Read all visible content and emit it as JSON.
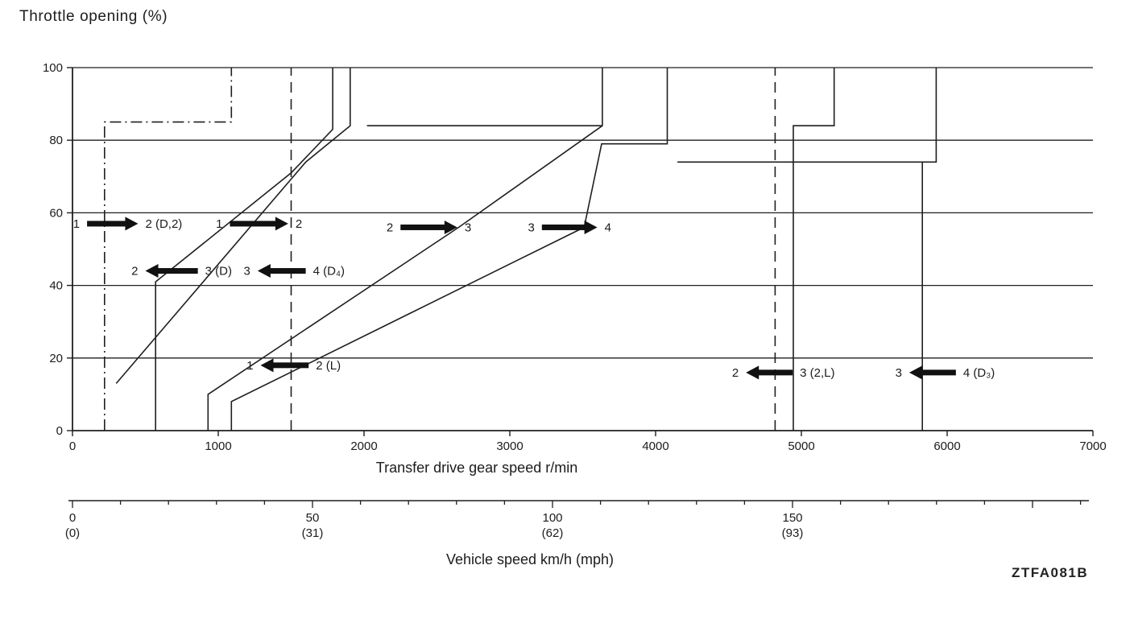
{
  "page": {
    "watermark": "ZTFA081B"
  },
  "chart_data": {
    "type": "line",
    "title": "Throttle opening (%)",
    "ylabel": "Throttle opening (%)",
    "xlabel": "Transfer drive gear speed r/min",
    "xlim": [
      0,
      7000
    ],
    "ylim": [
      0,
      100
    ],
    "x_ticks": [
      0,
      1000,
      2000,
      3000,
      4000,
      5000,
      6000,
      7000
    ],
    "y_ticks": [
      0,
      20,
      40,
      60,
      80,
      100
    ],
    "grid": "horizontal",
    "ink_color": "#1f1f1f",
    "secondary_axis": {
      "label": "Vehicle speed km/h (mph)",
      "major_ticks": [
        {
          "value": 0,
          "label": "0",
          "sub": "(0)"
        },
        {
          "value": 50,
          "label": "50",
          "sub": "(31)"
        },
        {
          "value": 100,
          "label": "100",
          "sub": "(62)"
        },
        {
          "value": 150,
          "label": "150",
          "sub": "(93)"
        }
      ],
      "minor_tick_step": 10,
      "max": 210
    },
    "series": [
      {
        "name": "1-2 shift line (D,2)",
        "style": "dashdot",
        "points": [
          [
            220,
            0
          ],
          [
            220,
            85
          ],
          [
            1090,
            85
          ],
          [
            1090,
            100
          ]
        ]
      },
      {
        "name": "1-2 shift line",
        "style": "solid",
        "points": [
          [
            300,
            13
          ],
          [
            1600,
            74
          ],
          [
            1905,
            84
          ],
          [
            1905,
            100
          ]
        ]
      },
      {
        "name": "3-2 downshift line (D)",
        "style": "solid",
        "points": [
          [
            570,
            0
          ],
          [
            570,
            41
          ],
          [
            1500,
            71
          ],
          [
            1785,
            83
          ],
          [
            1785,
            100
          ]
        ]
      },
      {
        "name": "2-3 upshift line",
        "style": "solid",
        "points": [
          [
            930,
            0
          ],
          [
            930,
            10
          ],
          [
            2650,
            56
          ],
          [
            3635,
            84
          ],
          [
            3635,
            100
          ]
        ]
      },
      {
        "name": "3-4 upshift line",
        "style": "solid",
        "points": [
          [
            1090,
            0
          ],
          [
            1090,
            8
          ],
          [
            3510,
            56
          ],
          [
            3630,
            79
          ],
          [
            4080,
            79
          ],
          [
            4080,
            100
          ]
        ]
      },
      {
        "name": "1-2 shift line (L)",
        "style": "dashed",
        "points": [
          [
            1500,
            0
          ],
          [
            1500,
            100
          ]
        ]
      },
      {
        "name": "84% step segment",
        "style": "solid",
        "points": [
          [
            2020,
            84
          ],
          [
            3635,
            84
          ]
        ]
      },
      {
        "name": "3-2 downshift line (2,L)",
        "style": "dashed",
        "points": [
          [
            4820,
            0
          ],
          [
            4820,
            100
          ]
        ]
      },
      {
        "name": "high speed step 84%",
        "style": "solid",
        "points": [
          [
            4945,
            0
          ],
          [
            4945,
            84
          ],
          [
            5225,
            84
          ],
          [
            5225,
            100
          ]
        ]
      },
      {
        "name": "4-3 downshift line (D3)",
        "style": "solid",
        "points": [
          [
            5830,
            0
          ],
          [
            5830,
            74
          ]
        ]
      },
      {
        "name": "high speed step 74%",
        "style": "solid",
        "points": [
          [
            4150,
            74
          ],
          [
            5925,
            74
          ],
          [
            5925,
            100
          ]
        ]
      }
    ],
    "annotations": [
      {
        "y": 57,
        "x_start": 100,
        "x_end": 450,
        "direction": "right",
        "label_left": "1",
        "label_right": "2 (D,2)"
      },
      {
        "y": 57,
        "x_start": 1080,
        "x_end": 1480,
        "direction": "right",
        "label_left": "1",
        "label_right": "2"
      },
      {
        "y": 56,
        "x_start": 2250,
        "x_end": 2640,
        "direction": "right",
        "label_left": "2",
        "label_right": "3"
      },
      {
        "y": 56,
        "x_start": 3220,
        "x_end": 3600,
        "direction": "right",
        "label_left": "3",
        "label_right": "4"
      },
      {
        "y": 44,
        "x_start": 500,
        "x_end": 860,
        "direction": "left",
        "label_left": "2",
        "label_right": "3 (D)"
      },
      {
        "y": 44,
        "x_start": 1270,
        "x_end": 1600,
        "direction": "left",
        "label_left": "3",
        "label_right": "4 (D₄)"
      },
      {
        "y": 18,
        "x_start": 1290,
        "x_end": 1620,
        "direction": "left",
        "label_left": "1",
        "label_right": "2 (L)"
      },
      {
        "y": 16,
        "x_start": 4620,
        "x_end": 4940,
        "direction": "left",
        "label_left": "2",
        "label_right": "3 (2,L)"
      },
      {
        "y": 16,
        "x_start": 5740,
        "x_end": 6060,
        "direction": "left",
        "label_left": "3",
        "label_right": "4 (D₃)"
      }
    ]
  }
}
